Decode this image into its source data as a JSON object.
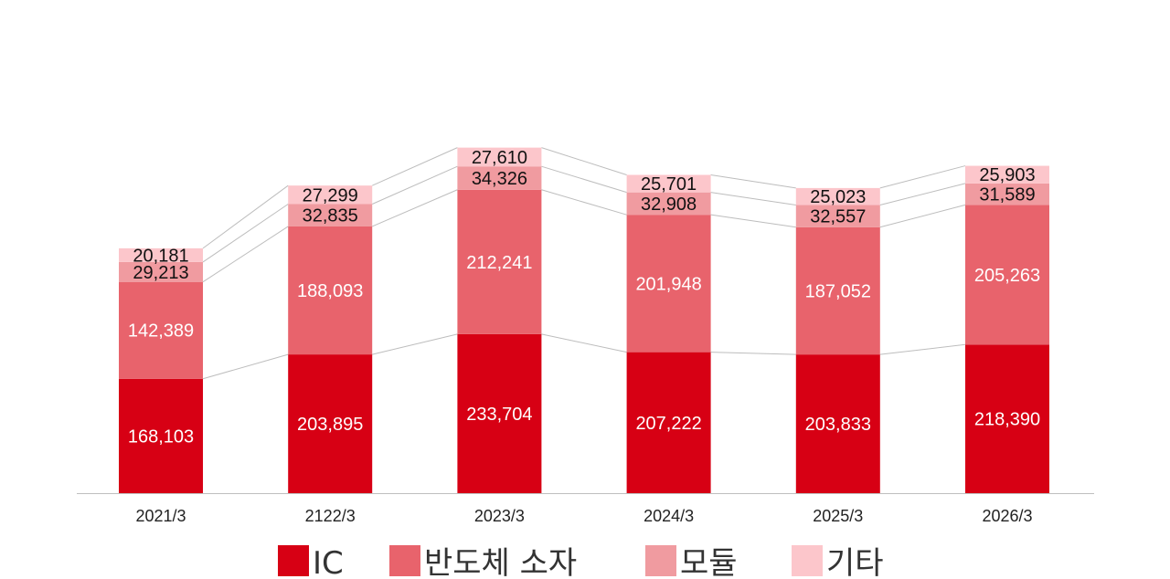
{
  "chart_data": {
    "type": "bar",
    "stacked": true,
    "categories": [
      "2021/3",
      "2122/3",
      "2023/3",
      "2024/3",
      "2025/3",
      "2026/3"
    ],
    "series": [
      {
        "name": "IC",
        "color": "#d70014",
        "label_color": "#ffffff",
        "values": [
          168103,
          203895,
          233704,
          207222,
          203833,
          218390
        ],
        "labels": [
          "168,103",
          "203,895",
          "233,704",
          "207,222",
          "203,833",
          "218,390"
        ]
      },
      {
        "name": "반도체 소자",
        "color": "#e8636c",
        "label_color": "#ffffff",
        "values": [
          142389,
          188093,
          212241,
          201948,
          187052,
          205263
        ],
        "labels": [
          "142,389",
          "188,093",
          "212,241",
          "201,948",
          "187,052",
          "205,263"
        ]
      },
      {
        "name": "모듈",
        "color": "#f09ba0",
        "label_color": "#111111",
        "values": [
          29213,
          32835,
          34326,
          32908,
          32557,
          31589
        ],
        "labels": [
          "29,213",
          "32,835",
          "34,326",
          "32,908",
          "32,557",
          "31,589"
        ]
      },
      {
        "name": "기타",
        "color": "#fcc6cb",
        "label_color": "#111111",
        "values": [
          20181,
          27299,
          27610,
          25701,
          25023,
          25903
        ],
        "labels": [
          "20,181",
          "27,299",
          "27,610",
          "25,701",
          "25,023",
          "25,903"
        ]
      }
    ],
    "ylim": [
      0,
      560000
    ],
    "series_lines": true,
    "grid": false,
    "legend": "bottom"
  }
}
